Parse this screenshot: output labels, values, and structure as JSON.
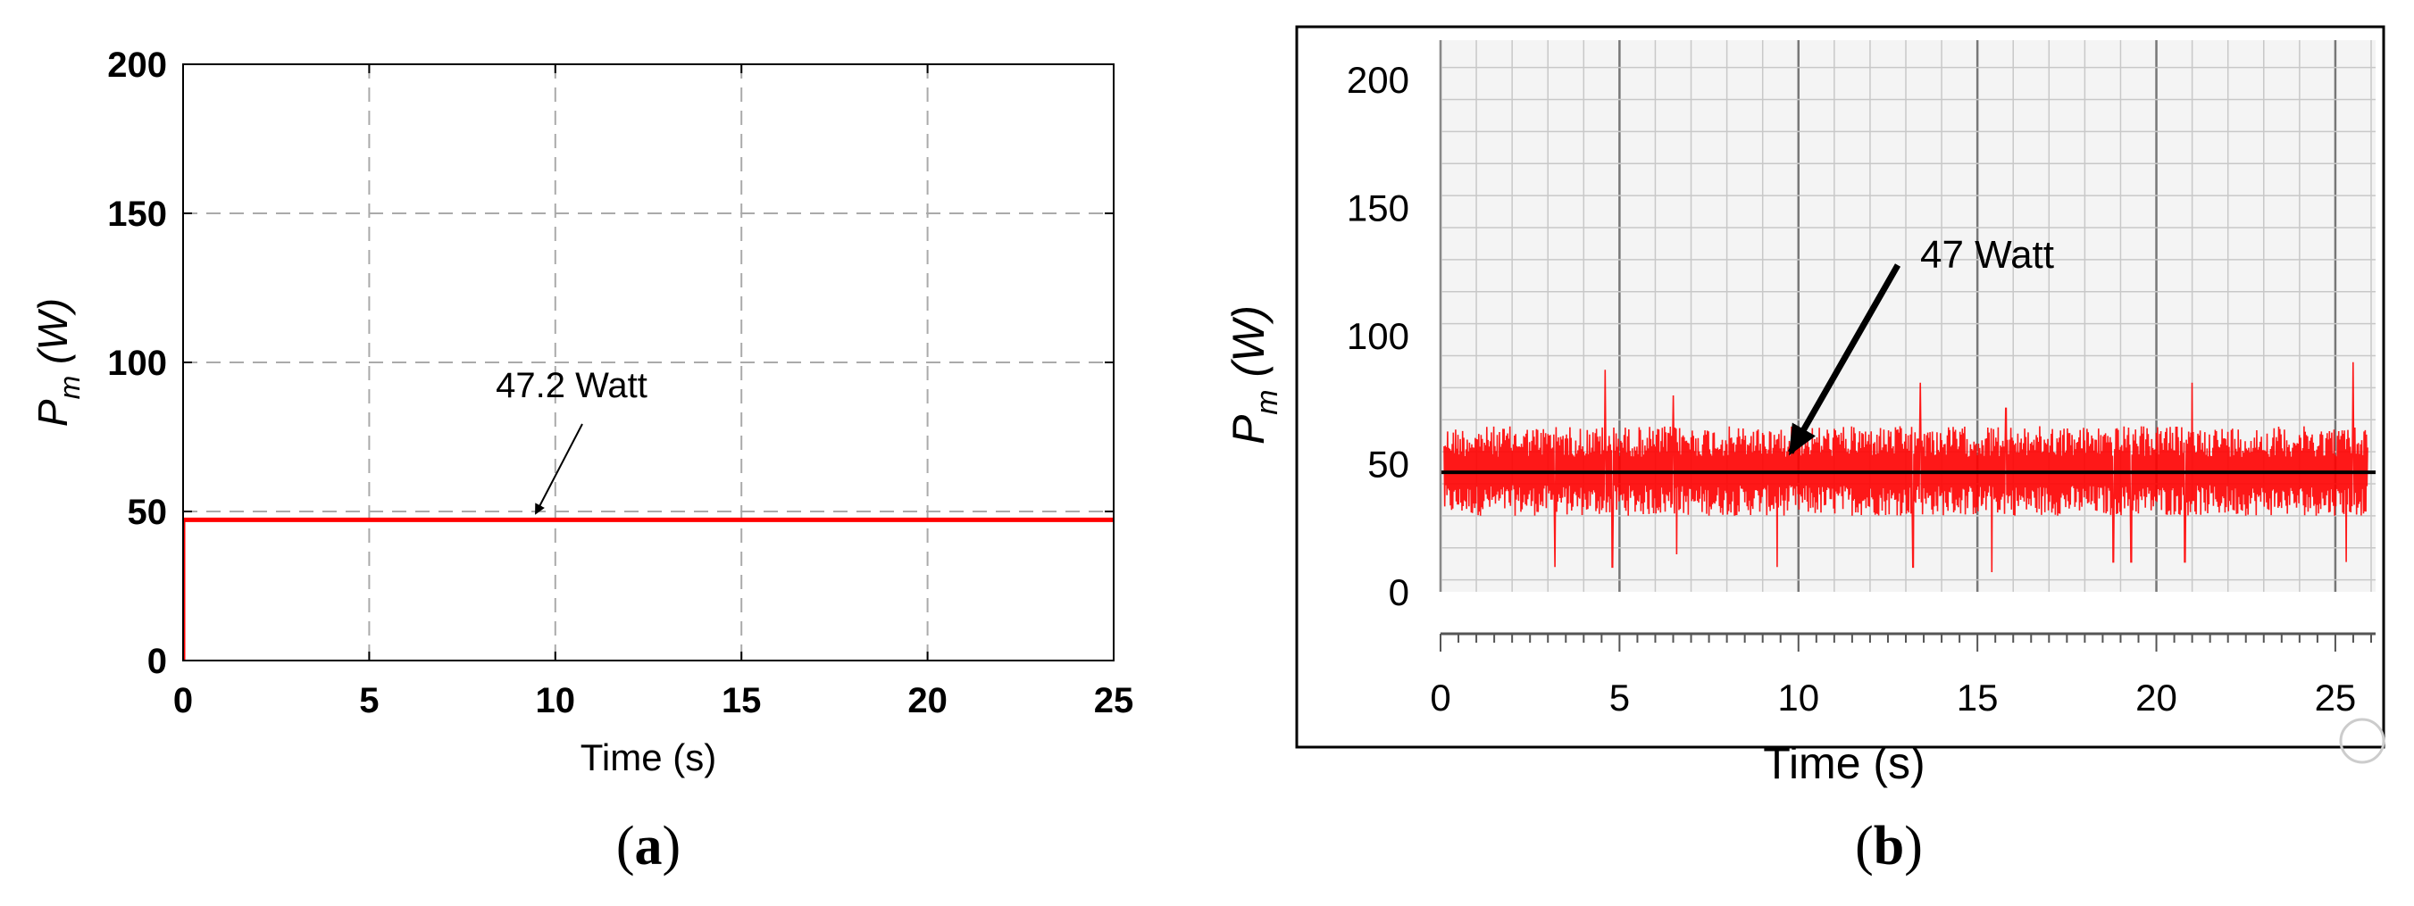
{
  "chart_data": [
    {
      "panel": "(a)",
      "type": "line",
      "xlabel": "Time (s)",
      "ylabel_base": "P",
      "ylabel_sub": "m",
      "ylabel_unit": "(W)",
      "xlim": [
        0,
        25
      ],
      "ylim": [
        0,
        200
      ],
      "x_ticks": [
        0,
        5,
        10,
        15,
        20,
        25
      ],
      "y_ticks": [
        0,
        50,
        100,
        150,
        200
      ],
      "grid": true,
      "series": [
        {
          "color": "#ff0000",
          "x": [
            0,
            0,
            25
          ],
          "y": [
            0,
            47.2,
            47.2
          ]
        }
      ],
      "annotation": {
        "text": "47.2 Watt",
        "target_x": 9.5,
        "target_y": 47.2
      }
    },
    {
      "panel": "(b)",
      "type": "line",
      "xlabel": "Time (s)",
      "ylabel_base": "P",
      "ylabel_sub": "m",
      "ylabel_unit": "(W)",
      "xlim": [
        0,
        26
      ],
      "ylim": [
        0,
        200
      ],
      "x_ticks": [
        0,
        5,
        10,
        15,
        20,
        25
      ],
      "y_ticks": [
        0,
        50,
        100,
        150,
        200
      ],
      "grid": true,
      "series": [
        {
          "color": "#ff0000",
          "description_values": {
            "mean": 47,
            "band_low": 30,
            "band_high": 65,
            "spikes": [
              [
                3.2,
                10
              ],
              [
                4.6,
                87
              ],
              [
                4.8,
                10
              ],
              [
                6.5,
                77
              ],
              [
                6.6,
                15
              ],
              [
                9.4,
                10
              ],
              [
                13.2,
                10
              ],
              [
                13.4,
                82
              ],
              [
                15.4,
                8
              ],
              [
                15.8,
                72
              ],
              [
                18.8,
                12
              ],
              [
                19.3,
                12
              ],
              [
                20.8,
                12
              ],
              [
                21.0,
                82
              ],
              [
                25.3,
                12
              ],
              [
                25.5,
                90
              ]
            ]
          }
        },
        {
          "color": "#000000",
          "x": [
            0,
            26
          ],
          "y": [
            47,
            47
          ]
        }
      ],
      "annotation": {
        "text": "47 Watt",
        "target_x": 9.6,
        "target_y": 53
      }
    }
  ],
  "captions": {
    "a": "a",
    "b": "b"
  }
}
